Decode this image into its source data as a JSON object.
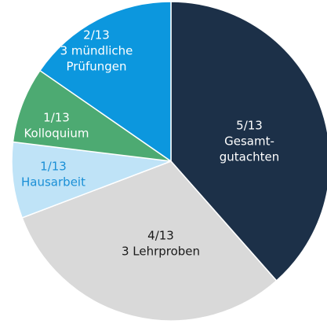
{
  "chart_data": {
    "type": "pie",
    "categories": [
      [
        "Gesamt-",
        "gutachten"
      ],
      [
        "3 Lehrproben"
      ],
      [
        "Hausarbeit"
      ],
      [
        "Kolloquium"
      ],
      [
        "3 mündliche",
        "Prüfungen"
      ]
    ],
    "values": [
      5,
      4,
      1,
      1,
      2
    ],
    "value_labels": [
      "5/13",
      "4/13",
      "1/13",
      "1/13",
      "2/13"
    ],
    "colors": [
      "#1c3048",
      "#d9d9d9",
      "#bfe3f7",
      "#4daa72",
      "#0c97de"
    ],
    "label_colors": [
      "#ffffff",
      "#1a1a1a",
      "#1a8fd6",
      "#ffffff",
      "#ffffff"
    ]
  }
}
